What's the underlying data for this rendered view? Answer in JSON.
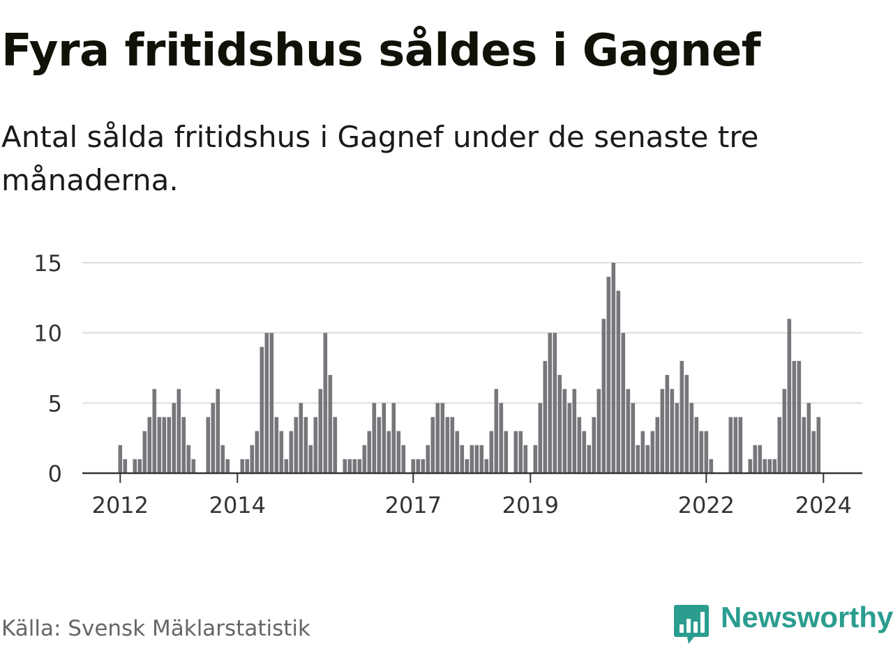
{
  "header": {
    "title": "Fyra fritidshus såldes i Gagnef",
    "subtitle": "Antal sålda fritidshus i Gagnef under de senaste tre månaderna."
  },
  "footer": {
    "source": "Källa: Svensk Mäklarstatistik",
    "brand": "Newsworthy"
  },
  "colors": {
    "bar": "#77767b",
    "highlight": "#2a9d8f",
    "grid": "#dddddd",
    "axis": "#333333",
    "brand": "#2a9d8f"
  },
  "chart_data": {
    "type": "bar",
    "title": "",
    "xlabel": "",
    "ylabel": "",
    "ylim": [
      0,
      15
    ],
    "yticks": [
      0,
      5,
      10,
      15
    ],
    "start": "2012-01",
    "xticks": [
      {
        "label": "2012",
        "index": 0
      },
      {
        "label": "2014",
        "index": 24
      },
      {
        "label": "2017",
        "index": 60
      },
      {
        "label": "2019",
        "index": 84
      },
      {
        "label": "2022",
        "index": 120
      },
      {
        "label": "2024",
        "index": 144
      }
    ],
    "values": [
      2,
      1,
      0,
      1,
      1,
      3,
      4,
      6,
      4,
      4,
      4,
      5,
      6,
      4,
      2,
      1,
      0,
      0,
      4,
      5,
      6,
      2,
      1,
      0,
      0,
      1,
      1,
      2,
      3,
      9,
      10,
      10,
      4,
      3,
      1,
      3,
      4,
      5,
      4,
      2,
      4,
      6,
      10,
      7,
      4,
      0,
      1,
      1,
      1,
      1,
      2,
      3,
      5,
      4,
      5,
      3,
      5,
      3,
      2,
      0,
      1,
      1,
      1,
      2,
      4,
      5,
      5,
      4,
      4,
      3,
      2,
      1,
      2,
      2,
      2,
      1,
      3,
      6,
      5,
      3,
      0,
      3,
      3,
      2,
      0,
      2,
      5,
      8,
      10,
      10,
      7,
      6,
      5,
      6,
      4,
      3,
      2,
      4,
      6,
      11,
      14,
      15,
      13,
      10,
      6,
      5,
      2,
      3,
      2,
      3,
      4,
      6,
      7,
      6,
      5,
      8,
      7,
      5,
      4,
      3,
      3,
      1,
      0,
      0,
      0,
      4,
      4,
      4,
      0,
      1,
      2,
      2,
      1,
      1,
      1,
      4,
      6,
      11,
      8,
      8,
      4,
      5,
      3,
      4
    ],
    "highlight_index": 144,
    "highlight_label": "4"
  }
}
